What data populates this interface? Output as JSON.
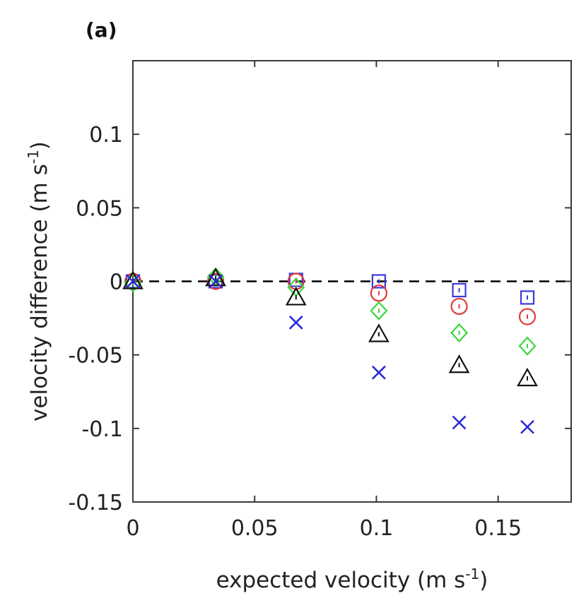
{
  "panel_label": "(a)",
  "chart_data": {
    "type": "scatter",
    "xlabel": "expected velocity (m s",
    "xlabel_sup": "-1",
    "xlabel_end": ")",
    "ylabel": "velocity difference (m s",
    "ylabel_sup": "-1",
    "ylabel_end": ")",
    "xlim": [
      0,
      0.18
    ],
    "ylim": [
      -0.15,
      0.15
    ],
    "xticks": [
      0,
      0.05,
      0.1,
      0.15
    ],
    "xtick_labels": [
      "0",
      "0.05",
      "0.1",
      "0.15"
    ],
    "yticks": [
      -0.15,
      -0.1,
      -0.05,
      0,
      0.05,
      0.1
    ],
    "ytick_labels": [
      "-0.15",
      "-0.1",
      "-0.05",
      "0",
      "0.05",
      "0.1"
    ],
    "grid": false,
    "reference_line": {
      "y": 0,
      "style": "dashed",
      "color": "#000000"
    },
    "series": [
      {
        "marker": "square",
        "color": "#3a3ae0",
        "x": [
          0,
          0.034,
          0.067,
          0.101,
          0.134,
          0.162
        ],
        "y": [
          0,
          0,
          0.001,
          0,
          -0.006,
          -0.011
        ]
      },
      {
        "marker": "circle",
        "color": "#e03a3a",
        "x": [
          0,
          0.034,
          0.067,
          0.101,
          0.134,
          0.162
        ],
        "y": [
          0,
          0,
          0.0,
          -0.008,
          -0.017,
          -0.024
        ]
      },
      {
        "marker": "diamond",
        "color": "#3ad63a",
        "x": [
          0,
          0.034,
          0.067,
          0.101,
          0.134,
          0.162
        ],
        "y": [
          -0.001,
          0.003,
          -0.004,
          -0.02,
          -0.035,
          -0.044
        ]
      },
      {
        "marker": "triangle",
        "color": "#111111",
        "x": [
          0,
          0.034,
          0.067,
          0.101,
          0.134,
          0.162
        ],
        "y": [
          0,
          0.002,
          -0.011,
          -0.036,
          -0.057,
          -0.066
        ]
      },
      {
        "marker": "x",
        "color": "#2a2ad8",
        "x": [
          0,
          0.034,
          0.067,
          0.101,
          0.134,
          0.162
        ],
        "y": [
          0,
          0,
          -0.028,
          -0.062,
          -0.096,
          -0.099
        ]
      }
    ]
  }
}
